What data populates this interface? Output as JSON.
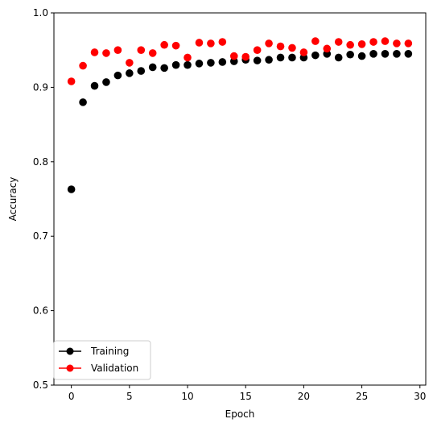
{
  "chart_data": {
    "type": "scatter",
    "title": "",
    "xlabel": "Epoch",
    "ylabel": "Accuracy",
    "xlim": [
      -1.5,
      30.5
    ],
    "ylim": [
      0.5,
      1.0
    ],
    "xticks": [
      0,
      5,
      10,
      15,
      20,
      25,
      30
    ],
    "yticks": [
      0.5,
      0.6,
      0.7,
      0.8,
      0.9,
      1.0
    ],
    "xtick_labels": [
      "0",
      "5",
      "10",
      "15",
      "20",
      "25",
      "30"
    ],
    "ytick_labels": [
      "0.5",
      "0.6",
      "0.7",
      "0.8",
      "0.9",
      "1.0"
    ],
    "grid": false,
    "legend_position": "lower-left",
    "x": [
      0,
      1,
      2,
      3,
      4,
      5,
      6,
      7,
      8,
      9,
      10,
      11,
      12,
      13,
      14,
      15,
      16,
      17,
      18,
      19,
      20,
      21,
      22,
      23,
      24,
      25,
      26,
      27,
      28,
      29
    ],
    "series": [
      {
        "name": "Training",
        "color": "#000000",
        "values": [
          0.763,
          0.88,
          0.902,
          0.907,
          0.916,
          0.919,
          0.922,
          0.927,
          0.926,
          0.93,
          0.93,
          0.932,
          0.933,
          0.934,
          0.935,
          0.937,
          0.936,
          0.937,
          0.94,
          0.94,
          0.94,
          0.943,
          0.945,
          0.94,
          0.944,
          0.942,
          0.945,
          0.945,
          0.945,
          0.945
        ]
      },
      {
        "name": "Validation",
        "color": "#ff0000",
        "values": [
          0.908,
          0.929,
          0.947,
          0.946,
          0.95,
          0.933,
          0.95,
          0.946,
          0.957,
          0.956,
          0.94,
          0.96,
          0.959,
          0.961,
          0.942,
          0.941,
          0.95,
          0.959,
          0.955,
          0.953,
          0.947,
          0.962,
          0.952,
          0.961,
          0.957,
          0.958,
          0.961,
          0.962,
          0.959,
          0.959
        ]
      }
    ]
  }
}
